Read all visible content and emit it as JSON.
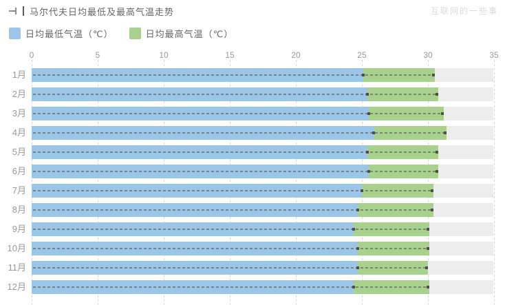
{
  "header": {
    "title": "马尔代夫日均最低及最高气温走势",
    "watermark": "互联网的一些事"
  },
  "legend": {
    "items": [
      {
        "label": "日均最低气温（℃）",
        "color": "#9cc6e8"
      },
      {
        "label": "日均最高气温（℃）",
        "color": "#a8d18d"
      }
    ]
  },
  "chart_data": {
    "type": "bar",
    "orientation": "horizontal",
    "title": "马尔代夫日均最低及最高气温走势",
    "categories": [
      "1月",
      "2月",
      "3月",
      "4月",
      "5月",
      "6月",
      "7月",
      "8月",
      "9月",
      "10月",
      "11月",
      "12月"
    ],
    "series": [
      {
        "name": "日均最低气温（℃）",
        "color": "#9cc6e8",
        "values": [
          25.1,
          25.4,
          25.5,
          25.9,
          25.4,
          25.5,
          25.0,
          24.7,
          24.4,
          24.7,
          24.7,
          24.4
        ]
      },
      {
        "name": "日均最高气温（℃）",
        "color": "#a8d18d",
        "values": [
          30.5,
          30.8,
          31.2,
          31.4,
          30.8,
          30.8,
          30.4,
          30.4,
          30.1,
          30.1,
          30.0,
          30.1
        ]
      }
    ],
    "note": "green segment spans from daily-min value to daily-max value (range bar)",
    "x_ticks": [
      0,
      5,
      10,
      15,
      20,
      25,
      30,
      35
    ],
    "xlim": [
      0,
      35
    ],
    "xlabel": "",
    "ylabel": "",
    "grid": "dashed-vertical",
    "legend_position": "top-left",
    "track_color": "#ededee",
    "marker_color": "#4d4d4d"
  }
}
